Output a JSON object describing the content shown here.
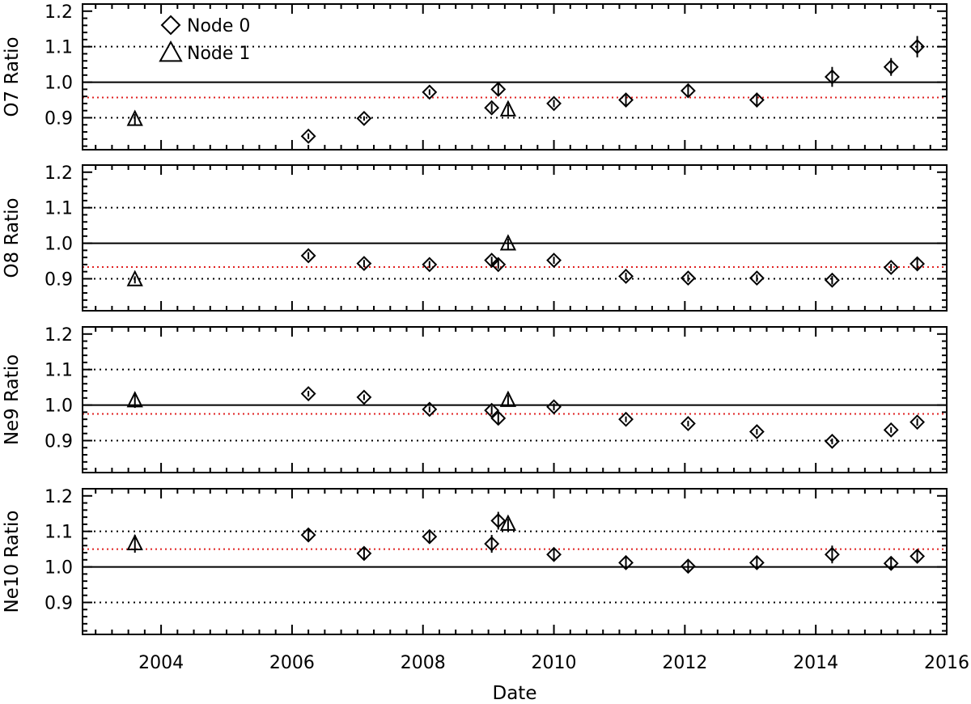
{
  "chart_data": {
    "type": "scatter",
    "xlabel": "Date",
    "x_ticks": [
      2004,
      2006,
      2008,
      2010,
      2012,
      2014,
      2016
    ],
    "xlim": [
      2002.8,
      2016.0
    ],
    "legend": {
      "placement": "top-left",
      "entries": [
        {
          "label": "Node 0",
          "marker": "diamond"
        },
        {
          "label": "Node 1",
          "marker": "triangle"
        }
      ]
    },
    "panels": [
      {
        "ylabel": "O7 Ratio",
        "ylim": [
          0.81,
          1.22
        ],
        "y_ticks": [
          "0.9",
          "1.0",
          "1.1",
          "1.2"
        ],
        "reference_line": 1.0,
        "dotted_lines": [
          0.9,
          1.1
        ],
        "mean_line": 0.957,
        "node0": [
          {
            "x": 2006.25,
            "y": 0.848,
            "err": 0.008
          },
          {
            "x": 2007.1,
            "y": 0.898,
            "err": 0.006
          },
          {
            "x": 2008.1,
            "y": 0.972,
            "err": 0.008
          },
          {
            "x": 2009.05,
            "y": 0.928,
            "err": 0.013
          },
          {
            "x": 2009.15,
            "y": 0.98,
            "err": 0.018
          },
          {
            "x": 2010.0,
            "y": 0.94,
            "err": 0.01
          },
          {
            "x": 2011.1,
            "y": 0.95,
            "err": 0.015
          },
          {
            "x": 2012.05,
            "y": 0.976,
            "err": 0.018
          },
          {
            "x": 2013.1,
            "y": 0.95,
            "err": 0.02
          },
          {
            "x": 2014.25,
            "y": 1.015,
            "err": 0.028
          },
          {
            "x": 2015.15,
            "y": 1.043,
            "err": 0.025
          },
          {
            "x": 2015.55,
            "y": 1.1,
            "err": 0.03
          }
        ],
        "node1": [
          {
            "x": 2003.6,
            "y": 0.895,
            "err": 0.015
          },
          {
            "x": 2009.3,
            "y": 0.922,
            "err": 0.015
          }
        ]
      },
      {
        "ylabel": "O8 Ratio",
        "ylim": [
          0.81,
          1.22
        ],
        "y_ticks": [
          "0.9",
          "1.0",
          "1.1",
          "1.2"
        ],
        "reference_line": 1.0,
        "dotted_lines": [
          0.9,
          1.1
        ],
        "mean_line": 0.933,
        "node0": [
          {
            "x": 2006.25,
            "y": 0.965,
            "err": 0.01
          },
          {
            "x": 2007.1,
            "y": 0.943,
            "err": 0.01
          },
          {
            "x": 2008.1,
            "y": 0.94,
            "err": 0.01
          },
          {
            "x": 2009.05,
            "y": 0.952,
            "err": 0.01
          },
          {
            "x": 2009.15,
            "y": 0.94,
            "err": 0.012
          },
          {
            "x": 2010.0,
            "y": 0.952,
            "err": 0.01
          },
          {
            "x": 2011.1,
            "y": 0.907,
            "err": 0.01
          },
          {
            "x": 2012.05,
            "y": 0.902,
            "err": 0.01
          },
          {
            "x": 2013.1,
            "y": 0.902,
            "err": 0.01
          },
          {
            "x": 2014.25,
            "y": 0.896,
            "err": 0.012
          },
          {
            "x": 2015.15,
            "y": 0.932,
            "err": 0.01
          },
          {
            "x": 2015.55,
            "y": 0.942,
            "err": 0.015
          }
        ],
        "node1": [
          {
            "x": 2003.6,
            "y": 0.897,
            "err": 0.01
          },
          {
            "x": 2009.3,
            "y": 0.998,
            "err": 0.015
          }
        ]
      },
      {
        "ylabel": "Ne9 Ratio",
        "ylim": [
          0.81,
          1.22
        ],
        "y_ticks": [
          "0.9",
          "1.0",
          "1.1",
          "1.2"
        ],
        "reference_line": 1.0,
        "dotted_lines": [
          0.9,
          1.1
        ],
        "mean_line": 0.975,
        "node0": [
          {
            "x": 2006.25,
            "y": 1.032,
            "err": 0.008
          },
          {
            "x": 2007.1,
            "y": 1.022,
            "err": 0.008
          },
          {
            "x": 2008.1,
            "y": 0.988,
            "err": 0.008
          },
          {
            "x": 2009.05,
            "y": 0.985,
            "err": 0.012
          },
          {
            "x": 2009.15,
            "y": 0.963,
            "err": 0.015
          },
          {
            "x": 2010.0,
            "y": 0.995,
            "err": 0.01
          },
          {
            "x": 2011.1,
            "y": 0.96,
            "err": 0.008
          },
          {
            "x": 2012.05,
            "y": 0.948,
            "err": 0.008
          },
          {
            "x": 2013.1,
            "y": 0.925,
            "err": 0.008
          },
          {
            "x": 2014.25,
            "y": 0.898,
            "err": 0.008
          },
          {
            "x": 2015.15,
            "y": 0.93,
            "err": 0.008
          },
          {
            "x": 2015.55,
            "y": 0.952,
            "err": 0.01
          }
        ],
        "node1": [
          {
            "x": 2003.6,
            "y": 1.012,
            "err": 0.02
          },
          {
            "x": 2009.3,
            "y": 1.013,
            "err": 0.015
          }
        ]
      },
      {
        "ylabel": "Ne10 Ratio",
        "ylim": [
          0.81,
          1.22
        ],
        "y_ticks": [
          "0.9",
          "1.0",
          "1.1",
          "1.2"
        ],
        "reference_line": 1.0,
        "dotted_lines": [
          0.9,
          1.1
        ],
        "mean_line": 1.05,
        "node0": [
          {
            "x": 2006.25,
            "y": 1.09,
            "err": 0.015
          },
          {
            "x": 2007.1,
            "y": 1.038,
            "err": 0.015
          },
          {
            "x": 2008.1,
            "y": 1.085,
            "err": 0.015
          },
          {
            "x": 2009.05,
            "y": 1.065,
            "err": 0.025
          },
          {
            "x": 2009.15,
            "y": 1.13,
            "err": 0.025
          },
          {
            "x": 2010.0,
            "y": 1.035,
            "err": 0.015
          },
          {
            "x": 2011.1,
            "y": 1.012,
            "err": 0.015
          },
          {
            "x": 2012.05,
            "y": 1.002,
            "err": 0.015
          },
          {
            "x": 2013.1,
            "y": 1.012,
            "err": 0.015
          },
          {
            "x": 2014.25,
            "y": 1.035,
            "err": 0.025
          },
          {
            "x": 2015.15,
            "y": 1.01,
            "err": 0.015
          },
          {
            "x": 2015.55,
            "y": 1.03,
            "err": 0.015
          }
        ],
        "node1": [
          {
            "x": 2003.6,
            "y": 1.065,
            "err": 0.025
          },
          {
            "x": 2009.3,
            "y": 1.12,
            "err": 0.015
          }
        ]
      }
    ],
    "colors": {
      "axis": "#000000",
      "mean_line": "#e02020",
      "marker": "#000000"
    }
  }
}
